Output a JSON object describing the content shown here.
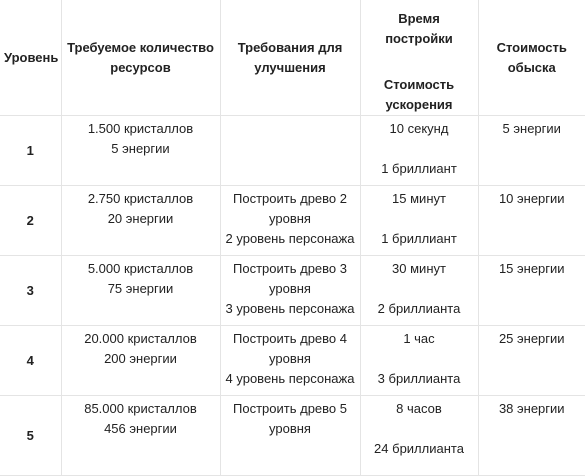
{
  "header": {
    "level": "Уровень",
    "resources": [
      "Требуемое количество",
      "ресурсов"
    ],
    "requirements": [
      "Требования для",
      "улучшения"
    ],
    "build_time": "Время постройки",
    "speedup_cost": [
      "Стоимость",
      "ускорения"
    ],
    "search_cost": [
      "Стоимость",
      "обыска"
    ]
  },
  "rows": [
    {
      "level": "1",
      "resources": [
        "1.500 кристаллов",
        "5 энергии"
      ],
      "requirements": [],
      "build_time": "10 секунд",
      "speedup": "1 бриллиант",
      "search": "5 энергии"
    },
    {
      "level": "2",
      "resources": [
        "2.750 кристаллов",
        "20 энергии"
      ],
      "requirements": [
        "Построить древо 2",
        "уровня",
        "2 уровень персонажа"
      ],
      "build_time": "15 минут",
      "speedup": "1 бриллиант",
      "search": "10 энергии"
    },
    {
      "level": "3",
      "resources": [
        "5.000 кристаллов",
        "75 энергии"
      ],
      "requirements": [
        "Построить древо 3",
        "уровня",
        "3 уровень персонажа"
      ],
      "build_time": "30 минут",
      "speedup": "2 бриллианта",
      "search": "15 энергии"
    },
    {
      "level": "4",
      "resources": [
        "20.000 кристаллов",
        "200 энергии"
      ],
      "requirements": [
        "Построить древо 4",
        "уровня",
        "4 уровень персонажа"
      ],
      "build_time": "1 час",
      "speedup": "3 бриллианта",
      "search": "25 энергии"
    },
    {
      "level": "5",
      "resources": [
        "85.000 кристаллов",
        "456 энергии"
      ],
      "requirements": [
        "Построить древо 5",
        "уровня"
      ],
      "build_time": "8 часов",
      "speedup": "24 бриллианта",
      "search": "38 энергии"
    }
  ]
}
